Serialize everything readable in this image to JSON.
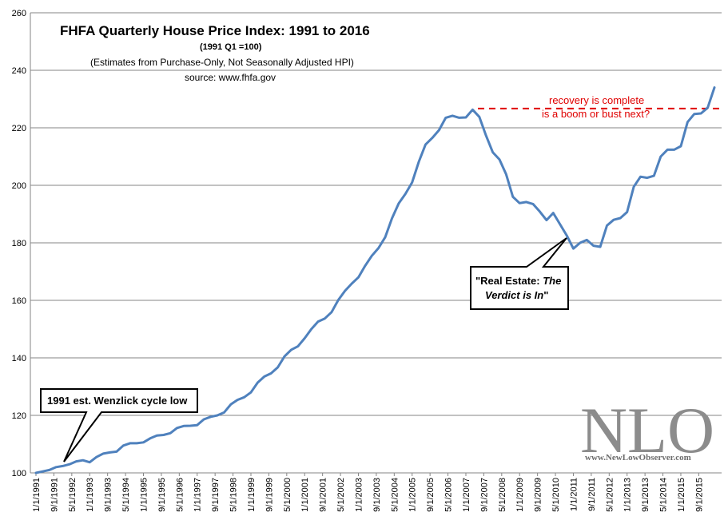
{
  "chart_data": {
    "type": "line",
    "title": "FHFA Quarterly  House Price Index: 1991 to 2016",
    "subtitle_base": "(1991  Q1 =100)",
    "subtitle_note": "(Estimates from Purchase-Only, Not Seasonally Adjusted HPI)",
    "source": "source: www.fhfa.gov",
    "ylim": [
      100,
      260
    ],
    "yticks": [
      100,
      120,
      140,
      160,
      180,
      200,
      220,
      240,
      260
    ],
    "xtick_labels": [
      "1/1/1991",
      "9/1/1991",
      "5/1/1992",
      "1/1/1993",
      "9/1/1993",
      "5/1/1994",
      "1/1/1995",
      "9/1/1995",
      "5/1/1996",
      "1/1/1997",
      "9/1/1997",
      "5/1/1998",
      "1/1/1999",
      "9/1/1999",
      "5/1/2000",
      "1/1/2001",
      "9/1/2001",
      "5/1/2002",
      "1/1/2003",
      "9/1/2003",
      "5/1/2004",
      "1/1/2005",
      "9/1/2005",
      "5/1/2006",
      "1/1/2007",
      "9/1/2007",
      "5/1/2008",
      "1/1/2009",
      "9/1/2009",
      "5/1/2010",
      "1/1/2011",
      "9/1/2011",
      "5/1/2012",
      "1/1/2013",
      "9/1/2013",
      "5/1/2014",
      "1/1/2015",
      "9/1/2015"
    ],
    "grid": true,
    "series": [
      {
        "color": "#4f81bd",
        "values": [
          100.0,
          100.5,
          101.0,
          102.0,
          102.4,
          103.0,
          104.0,
          104.4,
          103.7,
          105.5,
          106.7,
          107.1,
          107.4,
          109.5,
          110.3,
          110.3,
          110.6,
          112.0,
          113.0,
          113.2,
          113.8,
          115.6,
          116.3,
          116.4,
          116.6,
          118.6,
          119.5,
          120.0,
          121.0,
          123.8,
          125.4,
          126.3,
          128.0,
          131.4,
          133.5,
          134.6,
          136.7,
          140.5,
          142.8,
          144.0,
          146.8,
          150.0,
          152.6,
          153.7,
          155.9,
          160.1,
          163.3,
          165.8,
          168.0,
          172.0,
          175.5,
          178.2,
          182.0,
          188.5,
          193.7,
          197.0,
          201.0,
          208.2,
          214.2,
          216.5,
          219.2,
          223.5,
          224.2,
          223.5,
          223.6,
          226.3,
          223.8,
          217.3,
          211.5,
          209.0,
          203.8,
          196.0,
          193.8,
          194.2,
          193.5,
          190.9,
          187.9,
          190.4,
          186.5,
          182.6,
          178.0,
          180.0,
          181.0,
          179.0,
          178.6,
          186.0,
          188.0,
          188.6,
          190.7,
          199.5,
          203.0,
          202.6,
          203.3,
          210.0,
          212.4,
          212.4,
          213.6,
          222.0,
          224.8,
          225.0,
          227.0,
          234.0
        ]
      }
    ],
    "annotations": {
      "recovery_line_value": 226.7,
      "recovery_text_line1": "recovery is complete",
      "recovery_text_line2": "is a boom or bust next?",
      "callout_low_text": "1991 est. Wenzlick cycle low",
      "callout_verdict_line1_prefix": "\"Real Estate: ",
      "callout_verdict_line1_italic": "The",
      "callout_verdict_line2_italic": "Verdict is In",
      "callout_verdict_line2_suffix": "\""
    }
  },
  "watermark": {
    "logo_text": "NLO",
    "url_text": "www.NewLowObserver.com"
  }
}
